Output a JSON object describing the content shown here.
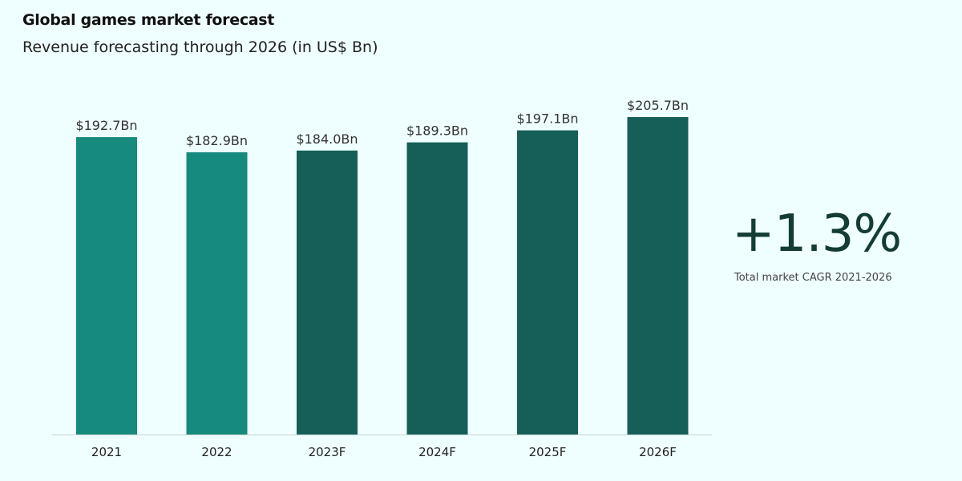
{
  "chart_data": {
    "type": "bar",
    "title": "Global games market forecast",
    "subtitle": "Revenue forecasting through 2026 (in US$ Bn)",
    "categories": [
      "2021",
      "2022",
      "2023F",
      "2024F",
      "2025F",
      "2026F"
    ],
    "values": [
      192.7,
      182.9,
      184.0,
      189.3,
      197.1,
      205.7
    ],
    "data_labels": [
      "$192.7Bn",
      "$182.9Bn",
      "$184.0Bn",
      "$189.3Bn",
      "$197.1Bn",
      "$205.7Bn"
    ],
    "ylim": [
      0,
      210
    ],
    "grid": false,
    "colors": {
      "actual": "#168a7c",
      "forecast": "#155f58"
    },
    "forecast_flags": [
      false,
      false,
      true,
      true,
      true,
      true
    ]
  },
  "kpi": {
    "value": "+1.3%",
    "label": "Total market CAGR 2021-2026"
  }
}
